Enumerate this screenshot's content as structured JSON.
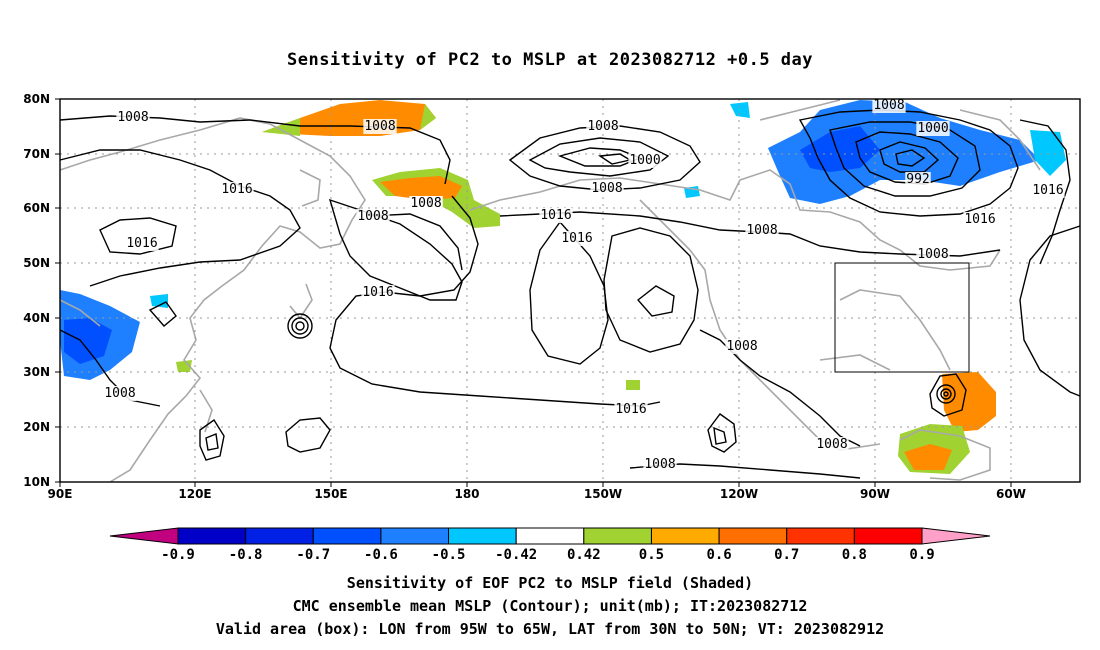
{
  "title": "Sensitivity of PC2 to MSLP at 2023082712 +0.5 day",
  "map": {
    "lon_labels": [
      "90E",
      "120E",
      "150E",
      "180",
      "150W",
      "120W",
      "90W",
      "60W"
    ],
    "lat_labels": [
      "80N",
      "70N",
      "60N",
      "50N",
      "40N",
      "30N",
      "20N",
      "10N"
    ],
    "contour_labels": [
      {
        "text": "1008"
      },
      {
        "text": "1008"
      },
      {
        "text": "1016"
      },
      {
        "text": "1016"
      },
      {
        "text": "1008"
      },
      {
        "text": "1008"
      },
      {
        "text": "1008"
      },
      {
        "text": "1000"
      },
      {
        "text": "1008"
      },
      {
        "text": "1016"
      },
      {
        "text": "1016"
      },
      {
        "text": "1016"
      },
      {
        "text": "1016"
      },
      {
        "text": "1008"
      },
      {
        "text": "1008"
      },
      {
        "text": "1008"
      },
      {
        "text": "1000"
      },
      {
        "text": "992"
      },
      {
        "text": "1016"
      },
      {
        "text": "1008"
      },
      {
        "text": "1016"
      },
      {
        "text": "1008"
      },
      {
        "text": "1008"
      },
      {
        "text": "1016"
      },
      {
        "text": "1008"
      }
    ],
    "valid_area_box": {
      "lon_from": "95W",
      "lon_to": "65W",
      "lat_from": "30N",
      "lat_to": "50N"
    }
  },
  "colorbar": {
    "labels": [
      "-0.9",
      "-0.8",
      "-0.7",
      "-0.6",
      "-0.5",
      "-0.42",
      "0.42",
      "0.5",
      "0.6",
      "0.7",
      "0.8",
      "0.9"
    ],
    "colors": [
      "#c0007f",
      "#0000c8",
      "#0020e6",
      "#0050ff",
      "#1e80ff",
      "#00c8ff",
      "#ffffff",
      "#a0d232",
      "#ffaa00",
      "#ff6e00",
      "#ff3200",
      "#ff0000",
      "#ffa0c8"
    ]
  },
  "captions": {
    "line1": "Sensitivity of EOF PC2 to MSLP field (Shaded)",
    "line2": "CMC ensemble mean MSLP (Contour); unit(mb); IT:2023082712",
    "line3": "Valid area (box): LON from 95W to 65W, LAT from 30N to 50N; VT: 2023082912"
  }
}
